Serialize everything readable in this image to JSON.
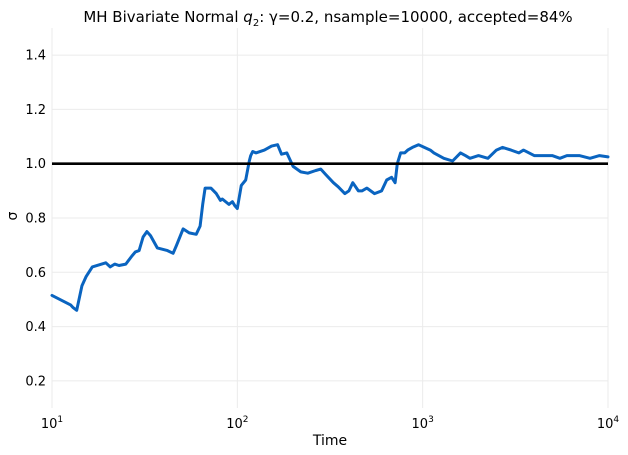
{
  "chart_data": {
    "type": "line",
    "title": "MH Bivariate Normal q₂: γ=0.2, nsample=10000, accepted=84%",
    "title_parts": {
      "prefix": "MH Bivariate Normal ",
      "q": "q",
      "q_sub": "2",
      "suffix": ": γ=0.2, nsample=10000, accepted=84%"
    },
    "xlabel": "Time",
    "ylabel": "σ",
    "x_scale": "log",
    "xlim": [
      10,
      10000
    ],
    "ylim": [
      0.1,
      1.5
    ],
    "grid": true,
    "x_ticks": [
      {
        "value": 10,
        "base": "10",
        "exp": "1"
      },
      {
        "value": 100,
        "base": "10",
        "exp": "2"
      },
      {
        "value": 1000,
        "base": "10",
        "exp": "3"
      },
      {
        "value": 10000,
        "base": "10",
        "exp": "4"
      }
    ],
    "y_ticks": [
      {
        "value": 0.2,
        "label": "0.2"
      },
      {
        "value": 0.4,
        "label": "0.4"
      },
      {
        "value": 0.6,
        "label": "0.6"
      },
      {
        "value": 0.8,
        "label": "0.8"
      },
      {
        "value": 1.0,
        "label": "1.0"
      },
      {
        "value": 1.2,
        "label": "1.2"
      },
      {
        "value": 1.4,
        "label": "1.4"
      }
    ],
    "reference_line": {
      "y": 1.0,
      "color": "#000000"
    },
    "series": [
      {
        "color": "#0a64c0",
        "x": [
          10,
          12.6,
          13,
          13.6,
          14.5,
          15.3,
          16.5,
          19.5,
          20.6,
          21.8,
          23,
          25,
          27,
          28.2,
          29.5,
          31,
          32.5,
          34,
          37,
          42,
          45,
          47,
          51,
          55,
          60,
          63,
          65,
          67,
          72,
          77,
          81,
          83,
          90,
          94,
          97,
          100,
          105,
          111,
          116,
          118,
          121,
          126,
          140,
          153,
          165,
          173,
          185,
          200,
          220,
          240,
          265,
          282,
          300,
          330,
          350,
          380,
          400,
          420,
          450,
          470,
          500,
          550,
          600,
          640,
          680,
          710,
          730,
          760,
          800,
          830,
          880,
          950,
          1020,
          1100,
          1150,
          1300,
          1450,
          1600,
          1700,
          1800,
          2000,
          2250,
          2500,
          2700,
          3000,
          3300,
          3500,
          4000,
          4500,
          5000,
          5500,
          6000,
          7000,
          8000,
          9000,
          10000
        ],
        "y": [
          0.515,
          0.48,
          0.47,
          0.46,
          0.55,
          0.585,
          0.62,
          0.635,
          0.62,
          0.63,
          0.625,
          0.63,
          0.66,
          0.675,
          0.68,
          0.73,
          0.75,
          0.735,
          0.69,
          0.68,
          0.67,
          0.7,
          0.76,
          0.745,
          0.74,
          0.77,
          0.85,
          0.91,
          0.91,
          0.89,
          0.865,
          0.87,
          0.85,
          0.86,
          0.845,
          0.835,
          0.92,
          0.94,
          1.01,
          1.03,
          1.045,
          1.04,
          1.05,
          1.065,
          1.07,
          1.035,
          1.04,
          0.99,
          0.97,
          0.965,
          0.975,
          0.98,
          0.96,
          0.93,
          0.915,
          0.89,
          0.9,
          0.93,
          0.9,
          0.9,
          0.91,
          0.89,
          0.9,
          0.94,
          0.95,
          0.93,
          1.0,
          1.04,
          1.04,
          1.05,
          1.06,
          1.07,
          1.06,
          1.05,
          1.04,
          1.02,
          1.01,
          1.04,
          1.03,
          1.02,
          1.03,
          1.02,
          1.05,
          1.06,
          1.05,
          1.04,
          1.05,
          1.03,
          1.03,
          1.03,
          1.02,
          1.03,
          1.03,
          1.02,
          1.03,
          1.025
        ]
      }
    ]
  }
}
